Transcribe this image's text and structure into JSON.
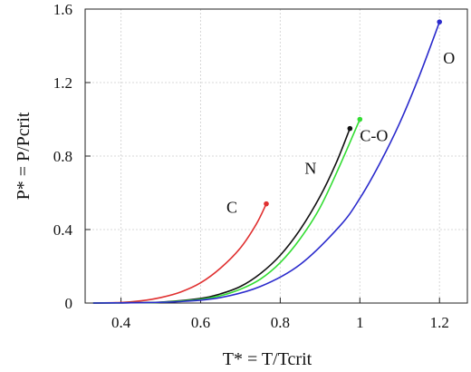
{
  "chart_data": {
    "type": "line",
    "xlabel": "T* = T/Tcrit",
    "ylabel": "P* = P/Pcrit",
    "xlim": [
      0.31,
      1.27
    ],
    "ylim": [
      0,
      1.6
    ],
    "xticks": [
      0.4,
      0.6,
      0.8,
      1.0,
      1.2
    ],
    "xtick_labels": [
      "0.4",
      "0.6",
      "0.8",
      "1",
      "1.2"
    ],
    "yticks": [
      0,
      0.4,
      0.8,
      1.2,
      1.6
    ],
    "ytick_labels": [
      "0",
      "0.4",
      "0.8",
      "1.2",
      "1.6"
    ],
    "grid": true,
    "series": [
      {
        "name": "C",
        "color": "#e03030",
        "endpoint_marker": true,
        "points": [
          [
            0.33,
            0.0
          ],
          [
            0.4,
            0.003
          ],
          [
            0.45,
            0.012
          ],
          [
            0.5,
            0.03
          ],
          [
            0.55,
            0.06
          ],
          [
            0.6,
            0.11
          ],
          [
            0.65,
            0.19
          ],
          [
            0.7,
            0.3
          ],
          [
            0.74,
            0.43
          ],
          [
            0.765,
            0.54
          ]
        ]
      },
      {
        "name": "N",
        "color": "#111111",
        "endpoint_marker": true,
        "points": [
          [
            0.33,
            0.0
          ],
          [
            0.4,
            0.001
          ],
          [
            0.5,
            0.005
          ],
          [
            0.6,
            0.025
          ],
          [
            0.65,
            0.05
          ],
          [
            0.7,
            0.09
          ],
          [
            0.75,
            0.16
          ],
          [
            0.8,
            0.26
          ],
          [
            0.85,
            0.4
          ],
          [
            0.9,
            0.58
          ],
          [
            0.94,
            0.76
          ],
          [
            0.975,
            0.95
          ]
        ]
      },
      {
        "name": "C-O",
        "color": "#33dd33",
        "endpoint_marker": true,
        "points": [
          [
            0.33,
            0.0
          ],
          [
            0.4,
            0.001
          ],
          [
            0.5,
            0.004
          ],
          [
            0.6,
            0.02
          ],
          [
            0.65,
            0.04
          ],
          [
            0.7,
            0.075
          ],
          [
            0.75,
            0.13
          ],
          [
            0.8,
            0.22
          ],
          [
            0.85,
            0.35
          ],
          [
            0.9,
            0.52
          ],
          [
            0.95,
            0.75
          ],
          [
            1.0,
            1.0
          ]
        ]
      },
      {
        "name": "O",
        "color": "#2a2acc",
        "endpoint_marker": true,
        "points": [
          [
            0.33,
            0.0
          ],
          [
            0.45,
            0.002
          ],
          [
            0.55,
            0.008
          ],
          [
            0.65,
            0.03
          ],
          [
            0.75,
            0.09
          ],
          [
            0.85,
            0.21
          ],
          [
            0.95,
            0.42
          ],
          [
            1.0,
            0.57
          ],
          [
            1.05,
            0.76
          ],
          [
            1.1,
            0.98
          ],
          [
            1.15,
            1.24
          ],
          [
            1.2,
            1.53
          ]
        ]
      }
    ]
  }
}
